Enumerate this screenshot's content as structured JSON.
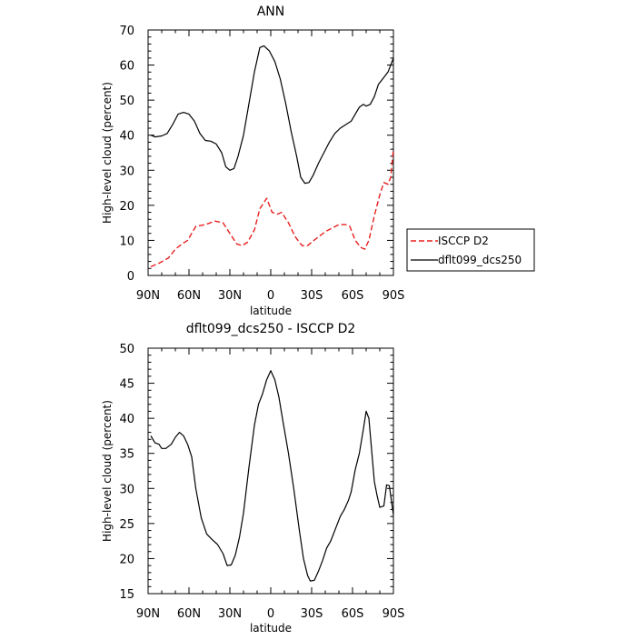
{
  "chart_data": [
    {
      "type": "line",
      "title": "ANN",
      "xlabel": "latitude",
      "ylabel": "High-level cloud (percent)",
      "xlim": [
        90,
        -90
      ],
      "ylim": [
        0,
        70
      ],
      "xticks": [
        {
          "value": 90,
          "label": "90N"
        },
        {
          "value": 60,
          "label": "60N"
        },
        {
          "value": 30,
          "label": "30N"
        },
        {
          "value": 0,
          "label": "0"
        },
        {
          "value": -30,
          "label": "30S"
        },
        {
          "value": -60,
          "label": "60S"
        },
        {
          "value": -90,
          "label": "90S"
        }
      ],
      "yticks": [
        0,
        10,
        20,
        30,
        40,
        50,
        60,
        70
      ],
      "legend": "right",
      "series": [
        {
          "name": "ISCCP D2",
          "color": "#e8201f",
          "style": "dashed",
          "points": [
            [
              88,
              2.5
            ],
            [
              82,
              3.5
            ],
            [
              75,
              5
            ],
            [
              70,
              7.5
            ],
            [
              65,
              9
            ],
            [
              61,
              10
            ],
            [
              55,
              14
            ],
            [
              48,
              14.5
            ],
            [
              41,
              15.5
            ],
            [
              35,
              15
            ],
            [
              30,
              12
            ],
            [
              25,
              9
            ],
            [
              21,
              8.5
            ],
            [
              17,
              9.5
            ],
            [
              12,
              13
            ],
            [
              8,
              19
            ],
            [
              3,
              22
            ],
            [
              -1,
              18
            ],
            [
              -5,
              17.5
            ],
            [
              -8,
              18
            ],
            [
              -13,
              15
            ],
            [
              -18,
              11
            ],
            [
              -23,
              8.5
            ],
            [
              -27,
              8.5
            ],
            [
              -30,
              9.5
            ],
            [
              -35,
              11
            ],
            [
              -40,
              12.5
            ],
            [
              -45,
              13.5
            ],
            [
              -50,
              14.5
            ],
            [
              -55,
              14.5
            ],
            [
              -58,
              14
            ],
            [
              -62,
              10
            ],
            [
              -66,
              8
            ],
            [
              -69,
              7.5
            ],
            [
              -72,
              10
            ],
            [
              -76,
              17
            ],
            [
              -80,
              23
            ],
            [
              -83,
              26.5
            ],
            [
              -86,
              26
            ],
            [
              -88,
              28
            ],
            [
              -90,
              36
            ]
          ]
        },
        {
          "name": "dflt099_dcs250",
          "color": "#000000",
          "style": "solid",
          "points": [
            [
              88,
              40
            ],
            [
              85,
              39.5
            ],
            [
              80,
              39.8
            ],
            [
              76,
              40.5
            ],
            [
              72,
              43
            ],
            [
              68,
              46
            ],
            [
              64,
              46.5
            ],
            [
              60,
              46
            ],
            [
              56,
              44
            ],
            [
              52,
              40.5
            ],
            [
              48,
              38.5
            ],
            [
              44,
              38.3
            ],
            [
              40,
              37.5
            ],
            [
              36,
              35
            ],
            [
              33,
              31
            ],
            [
              30,
              30
            ],
            [
              27,
              30.5
            ],
            [
              24,
              34
            ],
            [
              20,
              40
            ],
            [
              16,
              49
            ],
            [
              12,
              58
            ],
            [
              8,
              65
            ],
            [
              5,
              65.5
            ],
            [
              1,
              64
            ],
            [
              -3,
              61
            ],
            [
              -7,
              56
            ],
            [
              -11,
              49
            ],
            [
              -15,
              41
            ],
            [
              -19,
              34
            ],
            [
              -22,
              28
            ],
            [
              -25,
              26.3
            ],
            [
              -28,
              26.5
            ],
            [
              -31,
              28.5
            ],
            [
              -35,
              32
            ],
            [
              -39,
              35
            ],
            [
              -43,
              38
            ],
            [
              -47,
              40.5
            ],
            [
              -51,
              42
            ],
            [
              -55,
              43
            ],
            [
              -59,
              44
            ],
            [
              -62,
              46
            ],
            [
              -65,
              48
            ],
            [
              -68,
              48.8
            ],
            [
              -70,
              48.3
            ],
            [
              -73,
              48.8
            ],
            [
              -76,
              51
            ],
            [
              -79,
              54.5
            ],
            [
              -83,
              56.5
            ],
            [
              -86,
              58
            ],
            [
              -90,
              62
            ]
          ]
        }
      ]
    },
    {
      "type": "line",
      "title": "dflt099_dcs250 - ISCCP D2",
      "xlabel": "latitude",
      "ylabel": "High-level cloud (percent)",
      "xlim": [
        90,
        -90
      ],
      "ylim": [
        15,
        50
      ],
      "xticks": [
        {
          "value": 90,
          "label": "90N"
        },
        {
          "value": 60,
          "label": "60N"
        },
        {
          "value": 30,
          "label": "30N"
        },
        {
          "value": 0,
          "label": "0"
        },
        {
          "value": -30,
          "label": "30S"
        },
        {
          "value": -60,
          "label": "60S"
        },
        {
          "value": -90,
          "label": "90S"
        }
      ],
      "yticks": [
        15,
        20,
        25,
        30,
        35,
        40,
        45,
        50
      ],
      "series": [
        {
          "color": "#000000",
          "style": "solid",
          "points": [
            [
              88,
              37.5
            ],
            [
              85,
              36.5
            ],
            [
              82,
              36.3
            ],
            [
              80,
              35.7
            ],
            [
              77,
              35.7
            ],
            [
              73,
              36.3
            ],
            [
              70,
              37.3
            ],
            [
              67,
              38
            ],
            [
              64,
              37.5
            ],
            [
              61,
              36.3
            ],
            [
              58,
              34.5
            ],
            [
              55,
              30
            ],
            [
              51,
              25.8
            ],
            [
              47,
              23.5
            ],
            [
              43,
              22.7
            ],
            [
              39,
              22
            ],
            [
              35,
              20.7
            ],
            [
              32,
              19
            ],
            [
              29,
              19.1
            ],
            [
              26,
              20.5
            ],
            [
              23,
              23
            ],
            [
              20,
              26.5
            ],
            [
              16,
              33
            ],
            [
              12,
              39
            ],
            [
              9,
              42
            ],
            [
              6,
              43.5
            ],
            [
              3,
              45.5
            ],
            [
              0,
              46.8
            ],
            [
              -3,
              45.5
            ],
            [
              -6,
              43
            ],
            [
              -9,
              39.5
            ],
            [
              -13,
              35
            ],
            [
              -17,
              29.8
            ],
            [
              -21,
              24
            ],
            [
              -24,
              20
            ],
            [
              -27,
              17.6
            ],
            [
              -29,
              16.8
            ],
            [
              -32,
              16.9
            ],
            [
              -35,
              18.2
            ],
            [
              -38,
              19.7
            ],
            [
              -41,
              21.5
            ],
            [
              -44,
              22.5
            ],
            [
              -48,
              24.5
            ],
            [
              -51,
              26
            ],
            [
              -54,
              27
            ],
            [
              -57,
              28.3
            ],
            [
              -59,
              29.5
            ],
            [
              -62,
              32.7
            ],
            [
              -65,
              35
            ],
            [
              -68,
              38.5
            ],
            [
              -70,
              41
            ],
            [
              -72,
              40
            ],
            [
              -74,
              35.5
            ],
            [
              -76,
              31
            ],
            [
              -78,
              29
            ],
            [
              -80,
              27.3
            ],
            [
              -83,
              27.5
            ],
            [
              -85,
              30.5
            ],
            [
              -87,
              30.4
            ],
            [
              -90,
              26.2
            ]
          ]
        }
      ]
    }
  ]
}
